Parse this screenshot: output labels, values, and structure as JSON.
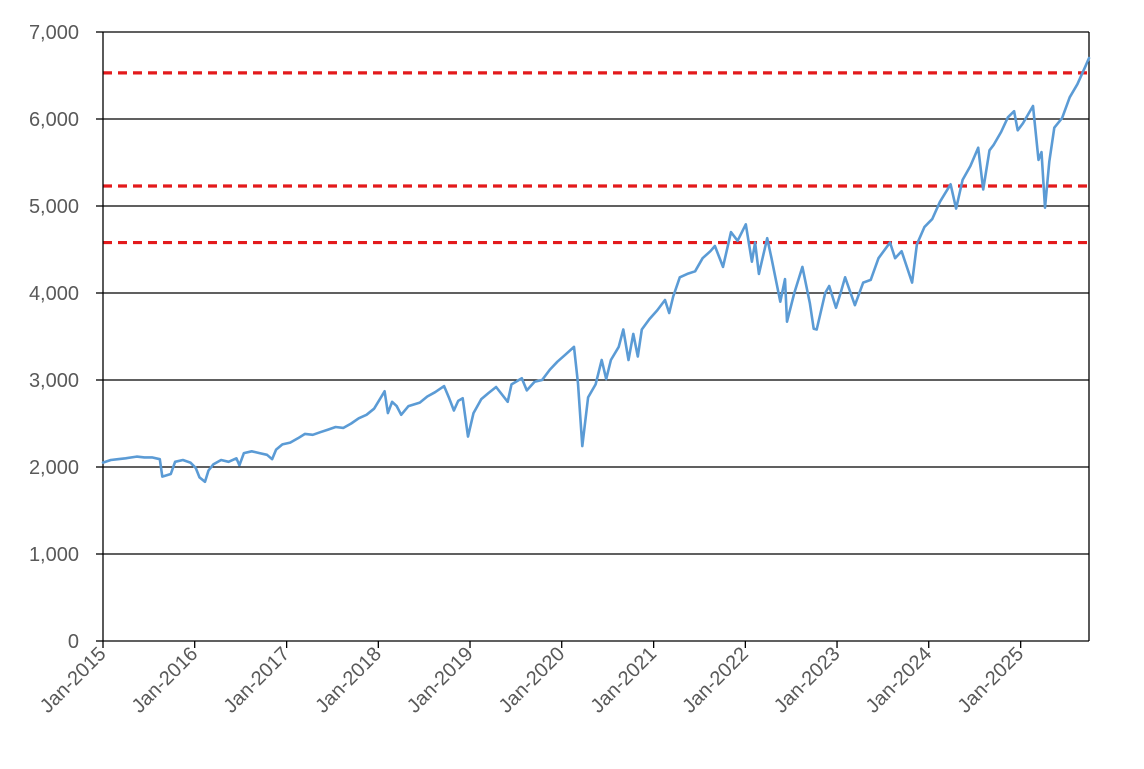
{
  "chart_data": {
    "type": "line",
    "title": "",
    "xlabel": "",
    "ylabel": "",
    "ylim": [
      0,
      7000
    ],
    "xlim": [
      "2015-01-01",
      "2025-09-30"
    ],
    "grid": true,
    "legend": "none",
    "y_ticks": [
      "0",
      "1,000",
      "2,000",
      "3,000",
      "4,000",
      "5,000",
      "6,000",
      "7,000"
    ],
    "y_tick_values": [
      0,
      1000,
      2000,
      3000,
      4000,
      5000,
      6000,
      7000
    ],
    "x_ticks": [
      "Jan-2015",
      "Jan-2016",
      "Jan-2017",
      "Jan-2018",
      "Jan-2019",
      "Jan-2020",
      "Jan-2021",
      "Jan-2022",
      "Jan-2023",
      "Jan-2024",
      "Jan-2025"
    ],
    "x_tick_dates": [
      "2015-01-01",
      "2016-01-01",
      "2017-01-01",
      "2018-01-01",
      "2019-01-01",
      "2020-01-01",
      "2021-01-01",
      "2022-01-01",
      "2023-01-01",
      "2024-01-01",
      "2025-01-01"
    ],
    "reference_lines": [
      {
        "y": 6530,
        "color": "#e31a1c",
        "style": "dashed"
      },
      {
        "y": 5230,
        "color": "#e31a1c",
        "style": "dashed"
      },
      {
        "y": 4580,
        "color": "#e31a1c",
        "style": "dashed"
      }
    ],
    "series": [
      {
        "color": "#5b9bd5",
        "x": [
          "2015-01-01",
          "2015-02-01",
          "2015-03-01",
          "2015-04-01",
          "2015-05-15",
          "2015-06-15",
          "2015-07-15",
          "2015-08-15",
          "2015-08-25",
          "2015-09-28",
          "2015-10-15",
          "2015-11-15",
          "2015-12-15",
          "2016-01-05",
          "2016-01-20",
          "2016-02-11",
          "2016-02-25",
          "2016-03-15",
          "2016-04-15",
          "2016-05-15",
          "2016-06-15",
          "2016-06-27",
          "2016-07-15",
          "2016-08-15",
          "2016-09-15",
          "2016-10-15",
          "2016-11-04",
          "2016-11-20",
          "2016-12-15",
          "2017-01-15",
          "2017-02-15",
          "2017-03-15",
          "2017-04-15",
          "2017-05-15",
          "2017-06-15",
          "2017-07-15",
          "2017-08-15",
          "2017-09-15",
          "2017-10-15",
          "2017-11-15",
          "2017-12-15",
          "2018-01-26",
          "2018-02-08",
          "2018-02-25",
          "2018-03-15",
          "2018-04-02",
          "2018-05-01",
          "2018-06-15",
          "2018-07-15",
          "2018-08-15",
          "2018-09-20",
          "2018-10-10",
          "2018-10-29",
          "2018-11-15",
          "2018-12-03",
          "2018-12-24",
          "2019-01-15",
          "2019-02-15",
          "2019-03-15",
          "2019-04-15",
          "2019-05-31",
          "2019-06-15",
          "2019-07-26",
          "2019-08-15",
          "2019-09-15",
          "2019-10-15",
          "2019-11-15",
          "2019-12-15",
          "2020-01-15",
          "2020-02-19",
          "2020-03-06",
          "2020-03-23",
          "2020-04-15",
          "2020-05-15",
          "2020-06-08",
          "2020-06-26",
          "2020-07-15",
          "2020-08-15",
          "2020-09-02",
          "2020-09-23",
          "2020-10-12",
          "2020-10-30",
          "2020-11-15",
          "2020-12-15",
          "2021-01-15",
          "2021-02-15",
          "2021-03-04",
          "2021-03-20",
          "2021-04-15",
          "2021-05-15",
          "2021-06-15",
          "2021-07-15",
          "2021-08-15",
          "2021-09-02",
          "2021-10-04",
          "2021-11-05",
          "2021-12-01",
          "2022-01-03",
          "2022-01-27",
          "2022-02-09",
          "2022-02-24",
          "2022-03-29",
          "2022-04-15",
          "2022-05-20",
          "2022-06-08",
          "2022-06-16",
          "2022-07-15",
          "2022-08-16",
          "2022-09-15",
          "2022-09-30",
          "2022-10-12",
          "2022-11-15",
          "2022-12-01",
          "2022-12-28",
          "2023-01-15",
          "2023-02-02",
          "2023-03-13",
          "2023-04-15",
          "2023-05-15",
          "2023-06-15",
          "2023-07-31",
          "2023-08-20",
          "2023-09-15",
          "2023-10-27",
          "2023-11-15",
          "2023-12-15",
          "2024-01-15",
          "2024-02-15",
          "2024-03-28",
          "2024-04-19",
          "2024-05-15",
          "2024-06-15",
          "2024-07-16",
          "2024-08-05",
          "2024-08-30",
          "2024-09-15",
          "2024-10-15",
          "2024-11-11",
          "2024-12-06",
          "2024-12-20",
          "2025-01-10",
          "2025-02-19",
          "2025-03-13",
          "2025-03-25",
          "2025-04-08",
          "2025-04-25",
          "2025-05-15",
          "2025-06-15",
          "2025-07-15",
          "2025-08-15",
          "2025-09-15",
          "2025-09-30"
        ],
        "values": [
          2050,
          2080,
          2090,
          2100,
          2120,
          2110,
          2110,
          2090,
          1890,
          1920,
          2060,
          2080,
          2050,
          1990,
          1880,
          1830,
          1960,
          2030,
          2080,
          2060,
          2100,
          2020,
          2160,
          2180,
          2160,
          2140,
          2090,
          2200,
          2260,
          2280,
          2330,
          2380,
          2370,
          2400,
          2430,
          2460,
          2450,
          2500,
          2560,
          2600,
          2670,
          2870,
          2620,
          2750,
          2700,
          2600,
          2700,
          2740,
          2810,
          2860,
          2930,
          2790,
          2650,
          2760,
          2790,
          2350,
          2620,
          2780,
          2850,
          2920,
          2750,
          2950,
          3020,
          2880,
          2980,
          3000,
          3120,
          3210,
          3290,
          3380,
          2960,
          2240,
          2800,
          2950,
          3230,
          3010,
          3230,
          3380,
          3580,
          3230,
          3530,
          3270,
          3580,
          3700,
          3800,
          3920,
          3770,
          3960,
          4180,
          4220,
          4250,
          4400,
          4480,
          4540,
          4300,
          4700,
          4600,
          4790,
          4360,
          4580,
          4220,
          4630,
          4400,
          3900,
          4160,
          3670,
          4000,
          4300,
          3880,
          3590,
          3580,
          4000,
          4080,
          3830,
          4000,
          4180,
          3860,
          4120,
          4150,
          4400,
          4580,
          4400,
          4480,
          4120,
          4560,
          4760,
          4850,
          5050,
          5250,
          4970,
          5300,
          5460,
          5670,
          5190,
          5640,
          5700,
          5850,
          6020,
          6090,
          5870,
          5950,
          6150,
          5530,
          5620,
          4980,
          5510,
          5900,
          6010,
          6250,
          6400,
          6600,
          6700
        ]
      }
    ]
  }
}
